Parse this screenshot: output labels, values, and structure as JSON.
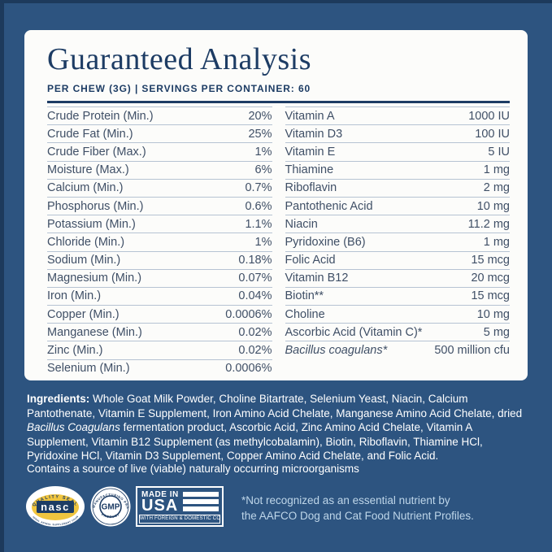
{
  "header": {
    "title": "Guaranteed Analysis",
    "subtitle": "PER CHEW (3G) | SERVINGS PER CONTAINER: 60"
  },
  "table": {
    "left": [
      {
        "label": "Crude Protein (Min.)",
        "value": "20%"
      },
      {
        "label": "Crude Fat (Min.)",
        "value": "25%"
      },
      {
        "label": "Crude Fiber (Max.)",
        "value": "1%"
      },
      {
        "label": "Moisture (Max.)",
        "value": "6%"
      },
      {
        "label": "Calcium (Min.)",
        "value": "0.7%"
      },
      {
        "label": "Phosphorus (Min.)",
        "value": "0.6%"
      },
      {
        "label": "Potassium (Min.)",
        "value": "1.1%"
      },
      {
        "label": "Chloride (Min.)",
        "value": "1%"
      },
      {
        "label": "Sodium (Min.)",
        "value": "0.18%"
      },
      {
        "label": "Magnesium (Min.)",
        "value": "0.07%"
      },
      {
        "label": "Iron (Min.)",
        "value": "0.04%"
      },
      {
        "label": "Copper (Min.)",
        "value": "0.0006%"
      },
      {
        "label": "Manganese (Min.)",
        "value": "0.02%"
      },
      {
        "label": "Zinc (Min.)",
        "value": "0.02%"
      },
      {
        "label": "Selenium (Min.)",
        "value": "0.0006%"
      }
    ],
    "right": [
      {
        "label": "Vitamin A",
        "value": "1000 IU"
      },
      {
        "label": "Vitamin D3",
        "value": "100 IU"
      },
      {
        "label": "Vitamin E",
        "value": "5 IU"
      },
      {
        "label": "Thiamine",
        "value": "1 mg"
      },
      {
        "label": "Riboflavin",
        "value": "2 mg"
      },
      {
        "label": "Pantothenic Acid",
        "value": "10 mg"
      },
      {
        "label": "Niacin",
        "value": "11.2 mg"
      },
      {
        "label": "Pyridoxine (B6)",
        "value": "1 mg"
      },
      {
        "label": "Folic Acid",
        "value": "15 mcg"
      },
      {
        "label": "Vitamin B12",
        "value": "20 mcg"
      },
      {
        "label": "Biotin**",
        "value": "15 mcg"
      },
      {
        "label": "Choline",
        "value": "10 mg"
      },
      {
        "label": "Ascorbic Acid (Vitamin C)*",
        "value": "5 mg"
      },
      {
        "label": "Bacillus coagulans*",
        "value": "500 million cfu",
        "italic": true
      }
    ]
  },
  "ingredients": {
    "heading": "Ingredients:",
    "before_italic": " Whole Goat Milk Powder, Choline Bitartrate, Selenium Yeast, Niacin, Calcium Pantothenate, Vitamin E Supplement, Iron Amino Acid Chelate, Manganese Amino Acid Chelate, dried ",
    "italic": "Bacillus Coagulans",
    "after_italic": " fermentation product, Ascorbic Acid, Zinc Amino Acid Chelate, Vitamin A Supplement, Vitamin B12 Supplement (as methylcobalamin), Biotin, Riboflavin, Thiamine HCl, Pyridoxine HCl, Vitamin D3 Supplement, Copper Amino Acid Chelate, and Folic Acid."
  },
  "contains_note": "Contains a source of live (viable) naturally occurring microorganisms",
  "footnote": {
    "line1": "*Not recognized as an essential nutrient by",
    "line2": "the AAFCO Dog and Cat Food Nutrient Profiles."
  },
  "badges": {
    "nasc": {
      "arc_top": "QUALITY SEAL",
      "center": "nasc",
      "arc_bottom": "NATIONAL ANIMAL SUPPLEMENT COUNCIL"
    },
    "gmp": {
      "arc_top": "GOOD MANUFACTURING PRACTICE",
      "center": "GMP",
      "arc_bottom": "PRODUCT"
    },
    "usa": {
      "line1": "MADE IN",
      "line2": "USA",
      "caption": "WITH FOREIGN & DOMESTIC COMPONENTS"
    }
  },
  "colors": {
    "background": "#2d5480",
    "frame_edge": "#1d3a5c",
    "card": "#fcfcfa",
    "navy_text": "#1d3c64",
    "table_text": "#3f4f66",
    "row_line": "#b6c3d3",
    "footnote_text": "#bed6e9",
    "nasc_yellow": "#f0c53f"
  }
}
